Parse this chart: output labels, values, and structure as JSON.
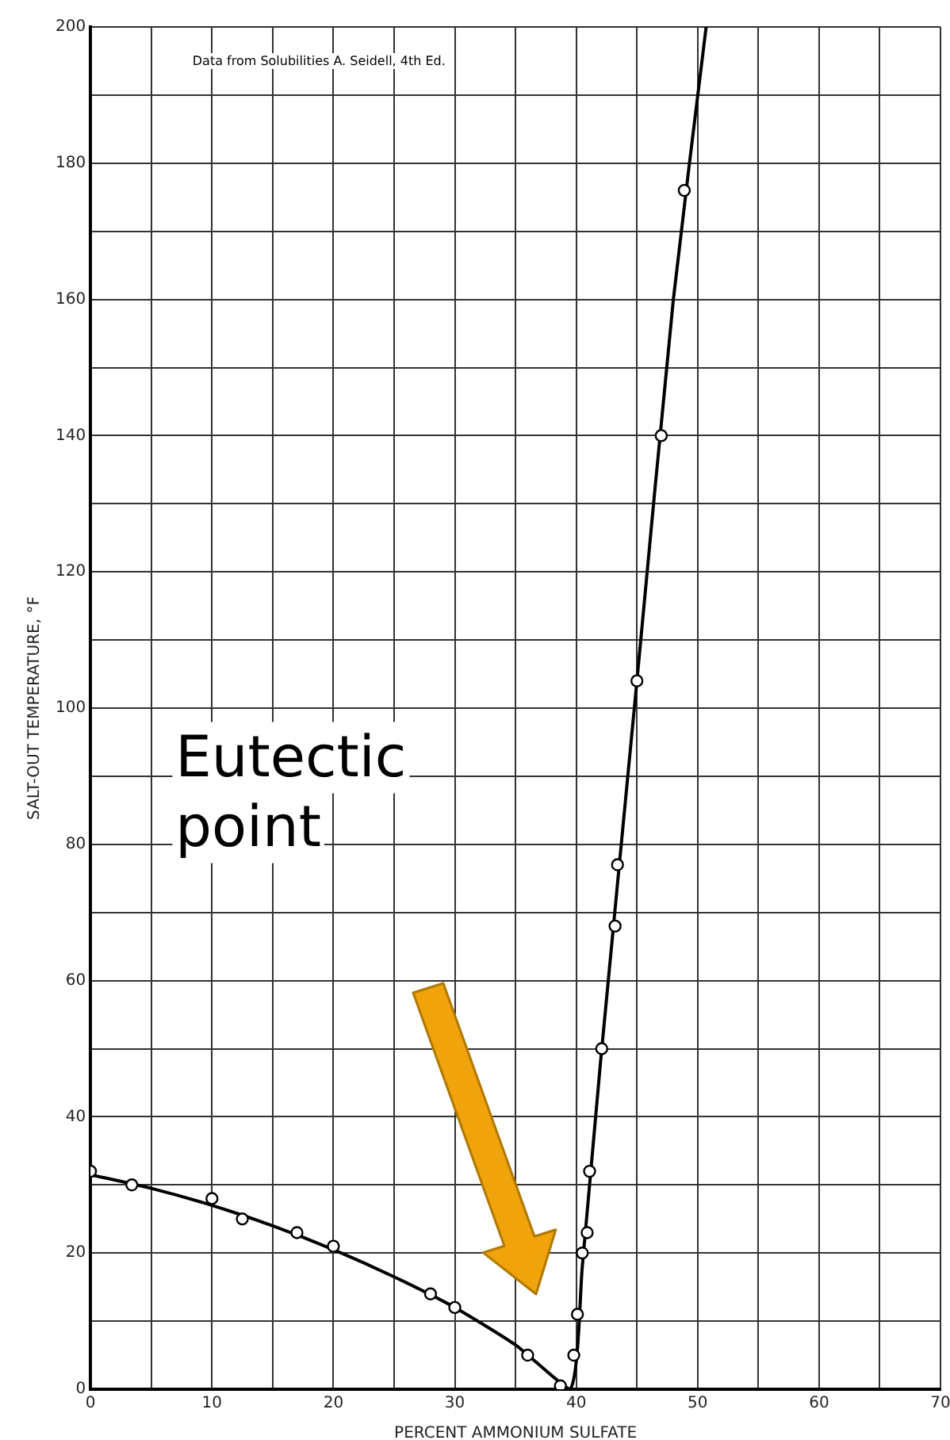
{
  "chart_data": {
    "type": "scatter",
    "xlabel": "PERCENT AMMONIUM SULFATE",
    "ylabel": "SALT-OUT TEMPERATURE, °F",
    "annotations": [
      "Data from Solubilities A. Seidell, 4th Ed.",
      "Eutectic point"
    ],
    "xlim": [
      0,
      70
    ],
    "ylim": [
      0,
      200
    ],
    "xticks": [
      0,
      {
        "value": 5,
        "label": null
      },
      10,
      {
        "value": 15,
        "label": null
      },
      20,
      {
        "value": 25,
        "label": null
      },
      30,
      {
        "value": 35,
        "label": null
      },
      40,
      {
        "value": 45,
        "label": null
      },
      50,
      {
        "value": 55,
        "label": null
      },
      60,
      {
        "value": 65,
        "label": null
      },
      70
    ],
    "yticks": [
      0,
      {
        "value": 10,
        "label": null
      },
      20,
      {
        "value": 30,
        "label": null
      },
      40,
      {
        "value": 50,
        "label": null
      },
      60,
      {
        "value": 70,
        "label": null
      },
      80,
      {
        "value": 90,
        "label": null
      },
      100,
      {
        "value": 110,
        "label": null
      },
      120,
      {
        "value": 130,
        "label": null
      },
      140,
      {
        "value": 150,
        "label": null
      },
      160,
      {
        "value": 170,
        "label": null
      },
      180,
      {
        "value": 190,
        "label": null
      },
      200
    ],
    "grid": true,
    "series": [
      {
        "type": "line",
        "marker": "none",
        "color": "#000000",
        "x": [
          0,
          5,
          10,
          15,
          20,
          25,
          30,
          35,
          39.5,
          40.5,
          42,
          45,
          48,
          50.7
        ],
        "values": [
          31.5,
          29.5,
          27,
          24,
          20.5,
          16.5,
          12,
          6.5,
          0,
          18,
          48,
          104,
          160,
          200
        ]
      },
      {
        "type": "scatter",
        "marker": "circle",
        "color": "#000000",
        "x": [
          0,
          3.4,
          10,
          12.5,
          17,
          20,
          28,
          30,
          36,
          38.7,
          39.8,
          40.1,
          40.5,
          40.9,
          41.1,
          42.1,
          43.2,
          43.4,
          45,
          47,
          48.9
        ],
        "values": [
          32,
          30,
          28,
          25,
          23,
          21,
          14,
          12,
          5,
          0.5,
          5,
          11,
          20,
          23,
          32,
          50,
          68,
          77,
          104,
          140,
          176
        ]
      }
    ]
  }
}
